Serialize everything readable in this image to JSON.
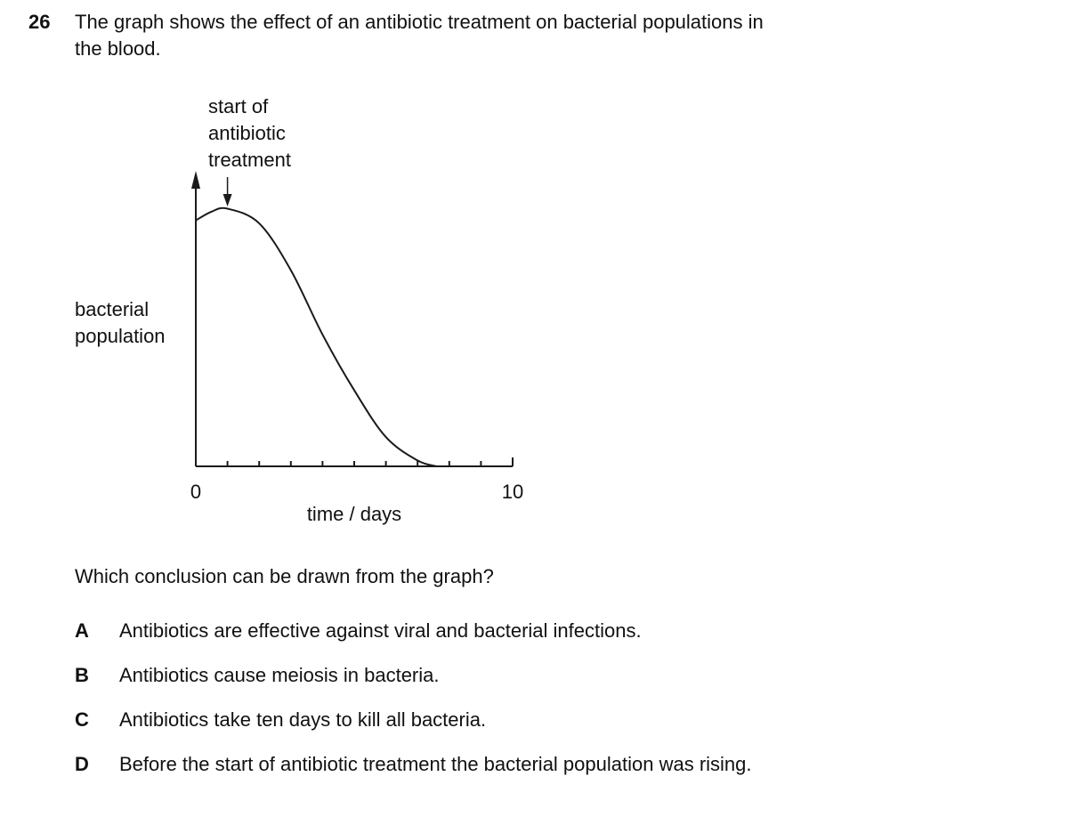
{
  "question": {
    "number": "26",
    "text_lines": [
      "The graph shows the effect of an antibiotic treatment on bacterial populations in",
      "the blood."
    ]
  },
  "chart_data": {
    "type": "line",
    "x": [
      0,
      0.5,
      1,
      2,
      3,
      4,
      5,
      6,
      7,
      7.6
    ],
    "values": [
      84,
      87,
      88,
      83,
      67,
      45,
      26,
      10,
      2,
      0
    ],
    "color": "#1a1a1a",
    "xlim": [
      0,
      10
    ],
    "ylim": [
      0,
      100
    ],
    "xticks": [
      0,
      10
    ],
    "x_minor_ticks": [
      1,
      2,
      3,
      4,
      5,
      6,
      7,
      8,
      9
    ],
    "xlabel": "time / days",
    "ylabel_lines": [
      "bacterial",
      "population"
    ],
    "annotation": {
      "text_lines": [
        "start of",
        "antibiotic",
        "treatment"
      ],
      "x": 1
    }
  },
  "prompt": "Which conclusion can be drawn from the graph?",
  "options": [
    {
      "letter": "A",
      "text": "Antibiotics are effective against viral and bacterial infections."
    },
    {
      "letter": "B",
      "text": "Antibiotics cause meiosis in bacteria."
    },
    {
      "letter": "C",
      "text": "Antibiotics take ten days to kill all bacteria."
    },
    {
      "letter": "D",
      "text": "Before the start of antibiotic treatment the bacterial population was rising."
    }
  ]
}
